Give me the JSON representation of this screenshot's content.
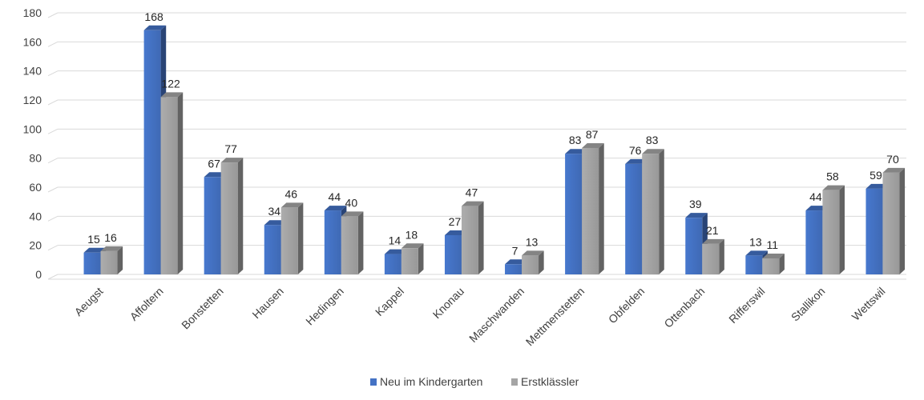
{
  "chart_data": {
    "type": "bar",
    "categories": [
      "Aeugst",
      "Affoltern",
      "Bonstetten",
      "Hausen",
      "Hedingen",
      "Kappel",
      "Knonau",
      "Maschwanden",
      "Mettmenstetten",
      "Obfelden",
      "Ottenbach",
      "Rifferswil",
      "Stallikon",
      "Wettswil"
    ],
    "series": [
      {
        "name": "Neu im Kindergarten",
        "color": "#4472c4",
        "values": [
          15,
          168,
          67,
          34,
          44,
          14,
          27,
          7,
          83,
          76,
          39,
          13,
          44,
          59
        ]
      },
      {
        "name": "Erstklässler",
        "color": "#a5a5a5",
        "values": [
          16,
          122,
          77,
          46,
          40,
          18,
          47,
          13,
          87,
          83,
          21,
          11,
          58,
          70
        ]
      }
    ],
    "ylim": [
      0,
      180
    ],
    "yticks": [
      0,
      20,
      40,
      60,
      80,
      100,
      120,
      140,
      160,
      180
    ],
    "grid": true,
    "legend_position": "bottom",
    "style": "3d-clustered-column"
  }
}
